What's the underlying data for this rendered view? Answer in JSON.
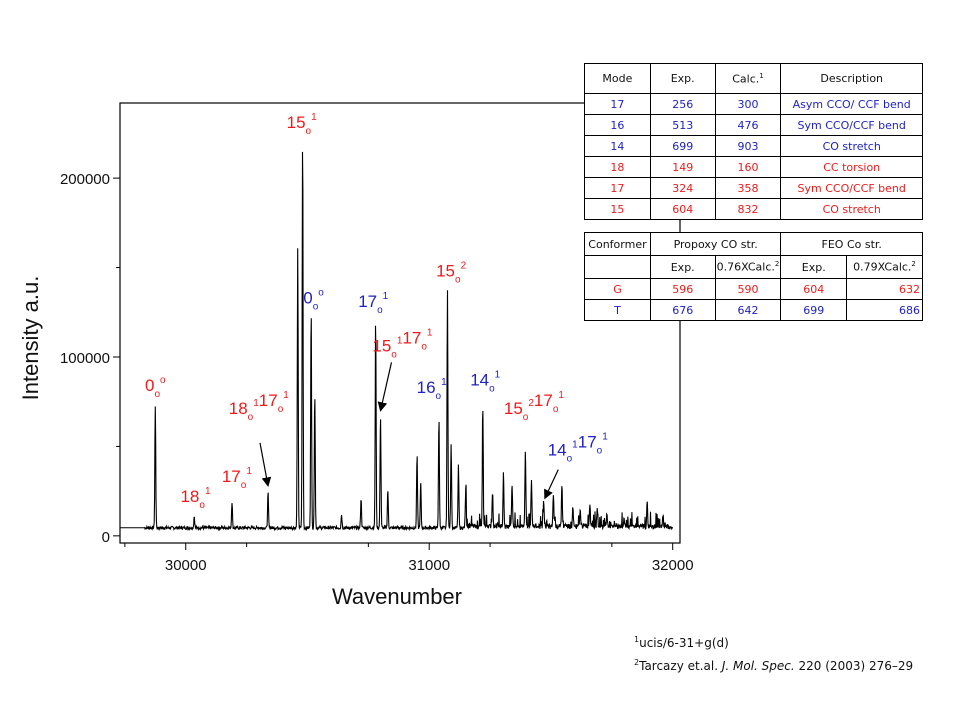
{
  "chart_data": {
    "type": "line",
    "title": "",
    "xlabel": "Wavenumber",
    "ylabel": "Intensity a.u.",
    "xlim": [
      29730,
      32030
    ],
    "ylim": [
      -4000,
      242000
    ],
    "xticks": [
      30000,
      31000,
      32000
    ],
    "yticks": [
      0,
      100000,
      200000
    ],
    "xtick_labels": [
      "30000",
      "31000",
      "32000"
    ],
    "ytick_labels": [
      "0",
      "100000",
      "200000"
    ],
    "grid": false,
    "legend": "none",
    "series_color": "#000000",
    "baseline": 4500,
    "peaks": [
      {
        "x": 29875,
        "y": 72000
      },
      {
        "x": 30035,
        "y": 11000
      },
      {
        "x": 30190,
        "y": 19000
      },
      {
        "x": 30338,
        "y": 24000
      },
      {
        "x": 30460,
        "y": 160000
      },
      {
        "x": 30480,
        "y": 222000
      },
      {
        "x": 30515,
        "y": 127000
      },
      {
        "x": 30530,
        "y": 80000
      },
      {
        "x": 30640,
        "y": 12000
      },
      {
        "x": 30720,
        "y": 21000
      },
      {
        "x": 30780,
        "y": 121000
      },
      {
        "x": 30800,
        "y": 68000
      },
      {
        "x": 30830,
        "y": 26000
      },
      {
        "x": 30950,
        "y": 45000
      },
      {
        "x": 30965,
        "y": 30000
      },
      {
        "x": 31040,
        "y": 66000
      },
      {
        "x": 31075,
        "y": 137000
      },
      {
        "x": 31090,
        "y": 52000
      },
      {
        "x": 31120,
        "y": 39000
      },
      {
        "x": 31150,
        "y": 26000
      },
      {
        "x": 31220,
        "y": 72000
      },
      {
        "x": 31260,
        "y": 24000
      },
      {
        "x": 31305,
        "y": 33000
      },
      {
        "x": 31340,
        "y": 28000
      },
      {
        "x": 31395,
        "y": 48000
      },
      {
        "x": 31420,
        "y": 30000
      },
      {
        "x": 31470,
        "y": 18000
      },
      {
        "x": 31510,
        "y": 22000
      },
      {
        "x": 31545,
        "y": 28000
      },
      {
        "x": 31590,
        "y": 16000
      },
      {
        "x": 31620,
        "y": 14000
      },
      {
        "x": 31660,
        "y": 18000
      },
      {
        "x": 31690,
        "y": 14000
      },
      {
        "x": 31730,
        "y": 11000
      },
      {
        "x": 31800,
        "y": 9000
      },
      {
        "x": 31895,
        "y": 17000
      },
      {
        "x": 31960,
        "y": 11000
      }
    ],
    "annotations": [
      {
        "main": "15",
        "sub": "o",
        "sup": "1",
        "color": "#ee1a1a",
        "x": 30476,
        "y": 228000
      },
      {
        "main": "0",
        "sub": "o",
        "sup": "o",
        "color": "#1f22c4",
        "x": 30525,
        "y": 130000
      },
      {
        "main": "17",
        "sub": "o",
        "sup": "1",
        "color": "#1f22c4",
        "x": 30770,
        "y": 128000
      },
      {
        "main": "15",
        "sub": "o",
        "sup": "2",
        "color": "#ee1a1a",
        "x": 31090,
        "y": 145000
      },
      {
        "main": "15",
        "sub": "o",
        "sup": "1",
        "main2": "17",
        "sub2": "o",
        "sup2": "1",
        "color": "#ee1a1a",
        "x": 30890,
        "y": 103000
      },
      {
        "main": "16",
        "sub": "o",
        "sup": "1",
        "color": "#1f22c4",
        "x": 31010,
        "y": 80000
      },
      {
        "main": "14",
        "sub": "o",
        "sup": "1",
        "color": "#1f22c4",
        "x": 31230,
        "y": 84000
      },
      {
        "main": "0",
        "sub": "o",
        "sup": "o",
        "color": "#ee1a1a",
        "x": 29875,
        "y": 81000
      },
      {
        "main": "18",
        "sub": "o",
        "sup": "1",
        "main2": "17",
        "sub2": "o",
        "sup2": "1",
        "color": "#ee1a1a",
        "x": 30300,
        "y": 68000
      },
      {
        "main": "15",
        "sub": "o",
        "sup": "2",
        "main2": "17",
        "sub2": "o",
        "sup2": "1",
        "color": "#ee1a1a",
        "x": 31430,
        "y": 68000
      },
      {
        "main": "14",
        "sub": "o",
        "sup": "1",
        "main2": "17",
        "sub2": "o",
        "sup2": "1",
        "color": "#1f22c4",
        "x": 31610,
        "y": 45000
      },
      {
        "main": "17",
        "sub": "o",
        "sup": "1",
        "color": "#ee1a1a",
        "x": 30210,
        "y": 30000
      },
      {
        "main": "18",
        "sub": "o",
        "sup": "1",
        "color": "#ee1a1a",
        "x": 30040,
        "y": 19000
      }
    ],
    "arrows": [
      {
        "from": [
          30845,
          97000
        ],
        "to": [
          30800,
          70000
        ]
      },
      {
        "from": [
          30305,
          52000
        ],
        "to": [
          30338,
          28000
        ]
      },
      {
        "from": [
          31530,
          37000
        ],
        "to": [
          31475,
          21000
        ]
      }
    ]
  },
  "table1": {
    "headers": [
      "Mode",
      "Exp.",
      "Calc.",
      "Description"
    ],
    "calc_sup": "1",
    "rows": [
      {
        "mode": "17",
        "exp": "256",
        "calc": "300",
        "desc": "Asym CCO/ CCF bend",
        "color": "blue"
      },
      {
        "mode": "16",
        "exp": "513",
        "calc": "476",
        "desc": "Sym CCO/CCF bend",
        "color": "blue"
      },
      {
        "mode": "14",
        "exp": "699",
        "calc": "903",
        "desc": "CO stretch",
        "color": "blue"
      },
      {
        "mode": "18",
        "exp": "149",
        "calc": "160",
        "desc": "CC torsion",
        "color": "red"
      },
      {
        "mode": "17",
        "exp": "324",
        "calc": "358",
        "desc": "Sym CCO/CCF bend",
        "color": "red"
      },
      {
        "mode": "15",
        "exp": "604",
        "calc": "832",
        "desc": "CO stretch",
        "color": "red"
      }
    ]
  },
  "table2": {
    "h_conformer": "Conformer",
    "h_propoxy": "Propoxy CO str.",
    "h_feo": "FEO Co str.",
    "sub_exp1": "Exp.",
    "sub_calc1": "0.76XCalc.",
    "sub_exp2": "Exp.",
    "sub_calc2": "0.79XCalc.",
    "calc_sup": "2",
    "rows": [
      {
        "conf": "G",
        "exp1": "596",
        "calc1": "590",
        "exp2": "604",
        "calc2": "632",
        "color": "red"
      },
      {
        "conf": "T",
        "exp1": "676",
        "calc1": "642",
        "exp2": "699",
        "calc2": "686",
        "color": "blue"
      }
    ]
  },
  "footnotes": {
    "n1_sup": "1",
    "n1_text": "ucis/6-31+g(d)",
    "n2_sup": "2",
    "n2_text_a": "Tarcazy et.al. ",
    "n2_journal": "J. Mol. Spec.",
    "n2_text_b": " 220 (2003) 276–29"
  }
}
